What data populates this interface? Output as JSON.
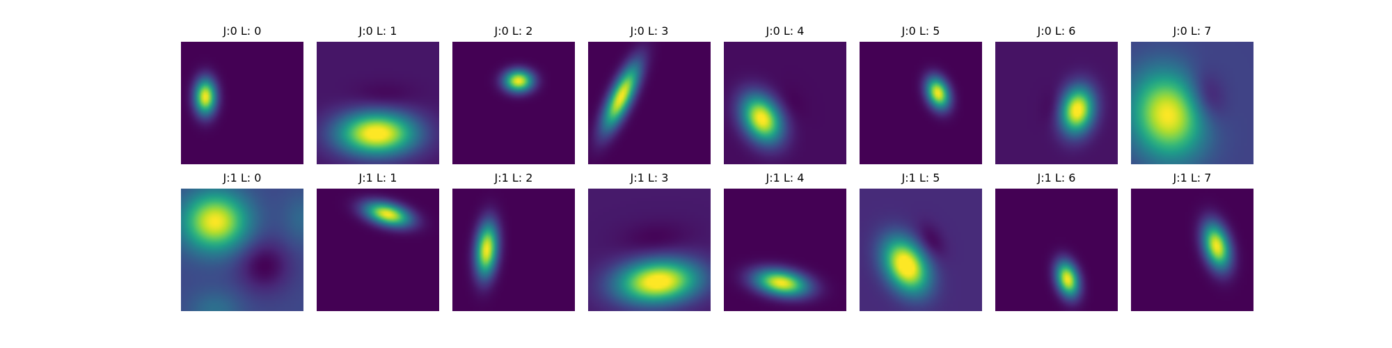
{
  "chart_data": {
    "type": "heatmap",
    "colormap": "viridis",
    "colormap_stops": [
      "#440154",
      "#482878",
      "#3e4989",
      "#31688e",
      "#26828e",
      "#1f9e89",
      "#35b779",
      "#6ece58",
      "#b5de2b",
      "#fde725"
    ],
    "grid": false,
    "axes_visible": false,
    "rows": 2,
    "cols": 8,
    "panels": [
      {
        "title": "J:0 L: 0",
        "background": 0.0,
        "blobs": [
          {
            "cx": 0.2,
            "cy": 0.45,
            "sx": 0.06,
            "sy": 0.1,
            "angle": 0,
            "amp": 1.0
          }
        ]
      },
      {
        "title": "J:0 L: 1",
        "background": 0.06,
        "blobs": [
          {
            "cx": 0.49,
            "cy": 0.75,
            "sx": 0.22,
            "sy": 0.12,
            "angle": 0,
            "amp": 1.0
          },
          {
            "cx": 0.55,
            "cy": 0.45,
            "sx": 0.18,
            "sy": 0.08,
            "angle": 0,
            "amp": -0.06
          }
        ]
      },
      {
        "title": "J:0 L: 2",
        "background": 0.0,
        "blobs": [
          {
            "cx": 0.54,
            "cy": 0.32,
            "sx": 0.08,
            "sy": 0.06,
            "angle": 0,
            "amp": 1.0
          }
        ]
      },
      {
        "title": "J:0 L: 3",
        "background": 0.0,
        "blobs": [
          {
            "cx": 0.27,
            "cy": 0.45,
            "sx": 0.06,
            "sy": 0.2,
            "angle": 25,
            "amp": 1.0
          }
        ]
      },
      {
        "title": "J:0 L: 4",
        "background": 0.03,
        "blobs": [
          {
            "cx": 0.31,
            "cy": 0.63,
            "sx": 0.1,
            "sy": 0.14,
            "angle": -30,
            "amp": 1.0
          },
          {
            "cx": 0.55,
            "cy": 0.5,
            "sx": 0.07,
            "sy": 0.1,
            "angle": -30,
            "amp": -0.03
          }
        ]
      },
      {
        "title": "J:0 L: 5",
        "background": 0.0,
        "blobs": [
          {
            "cx": 0.64,
            "cy": 0.42,
            "sx": 0.06,
            "sy": 0.09,
            "angle": -20,
            "amp": 1.0
          }
        ]
      },
      {
        "title": "J:0 L: 6",
        "background": 0.05,
        "blobs": [
          {
            "cx": 0.67,
            "cy": 0.56,
            "sx": 0.09,
            "sy": 0.13,
            "angle": 10,
            "amp": 1.0
          },
          {
            "cx": 0.47,
            "cy": 0.53,
            "sx": 0.06,
            "sy": 0.1,
            "angle": 10,
            "amp": -0.05
          }
        ]
      },
      {
        "title": "J:0 L: 7",
        "background": 0.2,
        "blobs": [
          {
            "cx": 0.3,
            "cy": 0.6,
            "sx": 0.2,
            "sy": 0.24,
            "angle": -15,
            "amp": 0.8
          },
          {
            "cx": 0.62,
            "cy": 0.45,
            "sx": 0.1,
            "sy": 0.15,
            "angle": -15,
            "amp": -0.2
          }
        ]
      },
      {
        "title": "J:1 L: 0",
        "background": 0.22,
        "blobs": [
          {
            "cx": 0.28,
            "cy": 0.27,
            "sx": 0.18,
            "sy": 0.16,
            "angle": 0,
            "amp": 0.78
          },
          {
            "cx": 0.68,
            "cy": 0.63,
            "sx": 0.15,
            "sy": 0.15,
            "angle": 0,
            "amp": -0.22
          },
          {
            "cx": 0.28,
            "cy": 1.0,
            "sx": 0.15,
            "sy": 0.12,
            "angle": 0,
            "amp": 0.15
          },
          {
            "cx": 1.0,
            "cy": 0.25,
            "sx": 0.12,
            "sy": 0.15,
            "angle": 0,
            "amp": 0.12
          }
        ]
      },
      {
        "title": "J:1 L: 1",
        "background": 0.0,
        "blobs": [
          {
            "cx": 0.58,
            "cy": 0.21,
            "sx": 0.13,
            "sy": 0.06,
            "angle": 15,
            "amp": 1.0
          }
        ]
      },
      {
        "title": "J:1 L: 2",
        "background": 0.0,
        "blobs": [
          {
            "cx": 0.28,
            "cy": 0.5,
            "sx": 0.06,
            "sy": 0.15,
            "angle": 5,
            "amp": 1.0
          }
        ]
      },
      {
        "title": "J:1 L: 3",
        "background": 0.07,
        "blobs": [
          {
            "cx": 0.57,
            "cy": 0.76,
            "sx": 0.23,
            "sy": 0.12,
            "angle": -5,
            "amp": 1.0
          },
          {
            "cx": 0.55,
            "cy": 0.42,
            "sx": 0.2,
            "sy": 0.1,
            "angle": -5,
            "amp": -0.07
          }
        ]
      },
      {
        "title": "J:1 L: 4",
        "background": 0.0,
        "blobs": [
          {
            "cx": 0.47,
            "cy": 0.77,
            "sx": 0.15,
            "sy": 0.07,
            "angle": 10,
            "amp": 1.0
          }
        ]
      },
      {
        "title": "J:1 L: 5",
        "background": 0.12,
        "blobs": [
          {
            "cx": 0.38,
            "cy": 0.63,
            "sx": 0.11,
            "sy": 0.16,
            "angle": -30,
            "amp": 1.0
          },
          {
            "cx": 0.58,
            "cy": 0.43,
            "sx": 0.07,
            "sy": 0.11,
            "angle": -30,
            "amp": -0.12
          }
        ]
      },
      {
        "title": "J:1 L: 6",
        "background": 0.0,
        "blobs": [
          {
            "cx": 0.59,
            "cy": 0.74,
            "sx": 0.06,
            "sy": 0.1,
            "angle": -15,
            "amp": 1.0
          }
        ]
      },
      {
        "title": "J:1 L: 7",
        "background": 0.0,
        "blobs": [
          {
            "cx": 0.7,
            "cy": 0.47,
            "sx": 0.07,
            "sy": 0.13,
            "angle": -15,
            "amp": 1.0
          }
        ]
      }
    ]
  }
}
